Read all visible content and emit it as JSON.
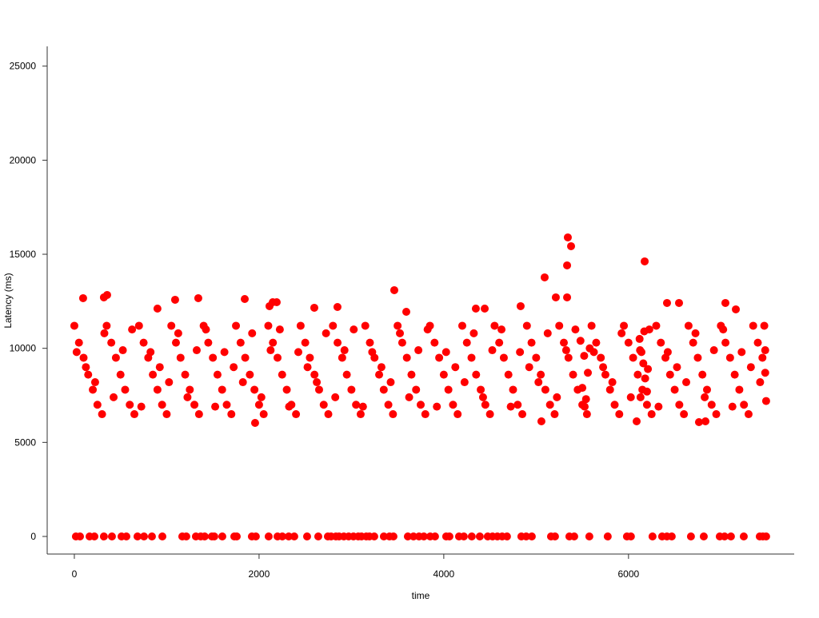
{
  "chart_data": {
    "type": "scatter",
    "title": "",
    "xlabel": "time",
    "ylabel": "Latency (ms)",
    "xlim": [
      -294,
      7794
    ],
    "ylim": [
      -935,
      26050
    ],
    "xticks": [
      0,
      2000,
      4000,
      6000
    ],
    "yticks": [
      0,
      5000,
      10000,
      15000,
      20000,
      25000
    ],
    "grid": false,
    "legend": "none",
    "point_color": "#ff0000",
    "axis_color": "#333333",
    "points": [
      [
        5343,
        15895
      ],
      [
        5378,
        15428
      ],
      [
        5335,
        14408
      ],
      [
        6175,
        14620
      ],
      [
        5092,
        13770
      ],
      [
        5213,
        12708
      ],
      [
        5335,
        12708
      ],
      [
        3464,
        13090
      ],
      [
        95,
        12665
      ],
      [
        320,
        12708
      ],
      [
        355,
        12835
      ],
      [
        1091,
        12580
      ],
      [
        1342,
        12665
      ],
      [
        1845,
        12622
      ],
      [
        900,
        12112
      ],
      [
        2113,
        12240
      ],
      [
        2148,
        12452
      ],
      [
        2191,
        12452
      ],
      [
        2598,
        12155
      ],
      [
        2849,
        12197
      ],
      [
        3594,
        11942
      ],
      [
        4832,
        12240
      ],
      [
        4347,
        12112
      ],
      [
        4443,
        12112
      ],
      [
        6417,
        12410
      ],
      [
        6547,
        12410
      ],
      [
        7049,
        12410
      ],
      [
        7162,
        12070
      ],
      [
        1957,
        6035
      ],
      [
        5057,
        6120
      ],
      [
        6088,
        6120
      ],
      [
        6763,
        6077
      ],
      [
        6833,
        6120
      ],
      [
        0,
        11200
      ],
      [
        50,
        10300
      ],
      [
        100,
        9500
      ],
      [
        150,
        8600
      ],
      [
        200,
        7800
      ],
      [
        250,
        7000
      ],
      [
        300,
        6500
      ],
      [
        350,
        11200
      ],
      [
        400,
        10300
      ],
      [
        450,
        9500
      ],
      [
        500,
        8600
      ],
      [
        550,
        7800
      ],
      [
        600,
        7000
      ],
      [
        650,
        6500
      ],
      [
        700,
        11200
      ],
      [
        750,
        10300
      ],
      [
        800,
        9500
      ],
      [
        850,
        8600
      ],
      [
        900,
        7800
      ],
      [
        950,
        7000
      ],
      [
        1000,
        6500
      ],
      [
        1050,
        11200
      ],
      [
        1100,
        10300
      ],
      [
        1150,
        9500
      ],
      [
        1200,
        8600
      ],
      [
        1250,
        7800
      ],
      [
        1300,
        7000
      ],
      [
        1350,
        6500
      ],
      [
        1400,
        11200
      ],
      [
        1450,
        10300
      ],
      [
        1500,
        9500
      ],
      [
        1550,
        8600
      ],
      [
        1600,
        7800
      ],
      [
        1650,
        7000
      ],
      [
        1700,
        6500
      ],
      [
        1750,
        11200
      ],
      [
        1800,
        10300
      ],
      [
        1850,
        9500
      ],
      [
        1900,
        8600
      ],
      [
        1950,
        7800
      ],
      [
        2000,
        7000
      ],
      [
        2050,
        6500
      ],
      [
        2100,
        11200
      ],
      [
        2150,
        10300
      ],
      [
        2200,
        9500
      ],
      [
        2250,
        8600
      ],
      [
        2300,
        7800
      ],
      [
        2350,
        7000
      ],
      [
        2400,
        6500
      ],
      [
        2450,
        11200
      ],
      [
        2500,
        10300
      ],
      [
        2550,
        9500
      ],
      [
        2600,
        8600
      ],
      [
        2650,
        7800
      ],
      [
        2700,
        7000
      ],
      [
        2750,
        6500
      ],
      [
        2800,
        11200
      ],
      [
        2850,
        10300
      ],
      [
        2900,
        9500
      ],
      [
        2950,
        8600
      ],
      [
        3000,
        7800
      ],
      [
        3050,
        7000
      ],
      [
        3100,
        6500
      ],
      [
        3150,
        11200
      ],
      [
        3200,
        10300
      ],
      [
        3250,
        9500
      ],
      [
        3300,
        8600
      ],
      [
        3350,
        7800
      ],
      [
        3400,
        7000
      ],
      [
        3450,
        6500
      ],
      [
        3500,
        11200
      ],
      [
        3550,
        10300
      ],
      [
        3600,
        9500
      ],
      [
        3650,
        8600
      ],
      [
        3700,
        7800
      ],
      [
        3750,
        7000
      ],
      [
        3800,
        6500
      ],
      [
        3850,
        11200
      ],
      [
        3900,
        10300
      ],
      [
        3950,
        9500
      ],
      [
        4000,
        8600
      ],
      [
        4050,
        7800
      ],
      [
        4100,
        7000
      ],
      [
        4150,
        6500
      ],
      [
        4200,
        11200
      ],
      [
        4250,
        10300
      ],
      [
        4300,
        9500
      ],
      [
        4350,
        8600
      ],
      [
        4400,
        7800
      ],
      [
        4450,
        7000
      ],
      [
        4500,
        6500
      ],
      [
        4550,
        11200
      ],
      [
        4600,
        10300
      ],
      [
        4650,
        9500
      ],
      [
        4700,
        8600
      ],
      [
        4750,
        7800
      ],
      [
        4800,
        7000
      ],
      [
        4850,
        6500
      ],
      [
        4900,
        11200
      ],
      [
        4950,
        10300
      ],
      [
        5000,
        9500
      ],
      [
        5050,
        8600
      ],
      [
        5100,
        7800
      ],
      [
        5150,
        7000
      ],
      [
        5200,
        6500
      ],
      [
        5250,
        11200
      ],
      [
        5300,
        10300
      ],
      [
        5350,
        9500
      ],
      [
        5400,
        8600
      ],
      [
        5450,
        7800
      ],
      [
        5500,
        7000
      ],
      [
        5550,
        6500
      ],
      [
        5600,
        11200
      ],
      [
        5650,
        10300
      ],
      [
        5700,
        9500
      ],
      [
        5750,
        8600
      ],
      [
        5800,
        7800
      ],
      [
        5850,
        7000
      ],
      [
        5900,
        6500
      ],
      [
        5950,
        11200
      ],
      [
        6000,
        10300
      ],
      [
        6050,
        9500
      ],
      [
        6100,
        8600
      ],
      [
        6150,
        7800
      ],
      [
        6200,
        7000
      ],
      [
        6250,
        6500
      ],
      [
        6300,
        11200
      ],
      [
        6350,
        10300
      ],
      [
        6400,
        9500
      ],
      [
        6450,
        8600
      ],
      [
        6500,
        7800
      ],
      [
        6550,
        7000
      ],
      [
        6600,
        6500
      ],
      [
        6650,
        11200
      ],
      [
        6700,
        10300
      ],
      [
        6750,
        9500
      ],
      [
        6800,
        8600
      ],
      [
        6850,
        7800
      ],
      [
        6900,
        7000
      ],
      [
        6950,
        6500
      ],
      [
        7000,
        11200
      ],
      [
        7050,
        10300
      ],
      [
        7100,
        9500
      ],
      [
        7150,
        8600
      ],
      [
        7200,
        7800
      ],
      [
        7250,
        7000
      ],
      [
        7300,
        6500
      ],
      [
        7350,
        11200
      ],
      [
        7400,
        10300
      ],
      [
        7450,
        9500
      ],
      [
        25,
        9800
      ],
      [
        125,
        9000
      ],
      [
        225,
        8200
      ],
      [
        325,
        10800
      ],
      [
        425,
        7400
      ],
      [
        525,
        9900
      ],
      [
        625,
        11000
      ],
      [
        725,
        6900
      ],
      [
        825,
        9800
      ],
      [
        925,
        9000
      ],
      [
        1025,
        8200
      ],
      [
        1125,
        10800
      ],
      [
        1225,
        7400
      ],
      [
        1325,
        9900
      ],
      [
        1425,
        11000
      ],
      [
        1525,
        6900
      ],
      [
        1625,
        9800
      ],
      [
        1725,
        9000
      ],
      [
        1825,
        8200
      ],
      [
        1925,
        10800
      ],
      [
        2025,
        7400
      ],
      [
        2125,
        9900
      ],
      [
        2225,
        11000
      ],
      [
        2325,
        6900
      ],
      [
        2425,
        9800
      ],
      [
        2525,
        9000
      ],
      [
        2625,
        8200
      ],
      [
        2725,
        10800
      ],
      [
        2825,
        7400
      ],
      [
        2925,
        9900
      ],
      [
        3025,
        11000
      ],
      [
        3125,
        6900
      ],
      [
        3225,
        9800
      ],
      [
        3325,
        9000
      ],
      [
        3425,
        8200
      ],
      [
        3525,
        10800
      ],
      [
        3625,
        7400
      ],
      [
        3725,
        9900
      ],
      [
        3825,
        11000
      ],
      [
        3925,
        6900
      ],
      [
        4025,
        9800
      ],
      [
        4125,
        9000
      ],
      [
        4225,
        8200
      ],
      [
        4325,
        10800
      ],
      [
        4425,
        7400
      ],
      [
        4525,
        9900
      ],
      [
        4625,
        11000
      ],
      [
        4725,
        6900
      ],
      [
        4825,
        9800
      ],
      [
        4925,
        9000
      ],
      [
        5025,
        8200
      ],
      [
        5125,
        10800
      ],
      [
        5225,
        7400
      ],
      [
        5325,
        9900
      ],
      [
        5425,
        11000
      ],
      [
        5525,
        6900
      ],
      [
        5625,
        9800
      ],
      [
        5725,
        9000
      ],
      [
        5825,
        8200
      ],
      [
        5925,
        10800
      ],
      [
        6025,
        7400
      ],
      [
        6125,
        9900
      ],
      [
        6225,
        11000
      ],
      [
        6325,
        6900
      ],
      [
        6425,
        9800
      ],
      [
        6525,
        9000
      ],
      [
        6625,
        8200
      ],
      [
        6725,
        10800
      ],
      [
        6825,
        7400
      ],
      [
        6925,
        9900
      ],
      [
        7025,
        11000
      ],
      [
        7125,
        6900
      ],
      [
        7225,
        9800
      ],
      [
        7325,
        9000
      ],
      [
        7425,
        8200
      ],
      [
        6120,
        10500
      ],
      [
        6140,
        9800
      ],
      [
        6160,
        9200
      ],
      [
        6180,
        8400
      ],
      [
        6200,
        7700
      ],
      [
        6130,
        7400
      ],
      [
        6170,
        10900
      ],
      [
        6210,
        8900
      ],
      [
        5480,
        10400
      ],
      [
        5520,
        9600
      ],
      [
        5560,
        8700
      ],
      [
        5500,
        7900
      ],
      [
        5540,
        7300
      ],
      [
        5580,
        10000
      ],
      [
        7480,
        9900
      ],
      [
        7480,
        8700
      ],
      [
        7490,
        7200
      ],
      [
        7470,
        11200
      ],
      [
        17,
        0
      ],
      [
        61,
        0
      ],
      [
        165,
        0
      ],
      [
        217,
        0
      ],
      [
        320,
        0
      ],
      [
        407,
        0
      ],
      [
        511,
        0
      ],
      [
        563,
        0
      ],
      [
        684,
        0
      ],
      [
        754,
        0
      ],
      [
        840,
        0
      ],
      [
        953,
        0
      ],
      [
        1169,
        0
      ],
      [
        1212,
        0
      ],
      [
        1316,
        0
      ],
      [
        1368,
        0
      ],
      [
        1411,
        0
      ],
      [
        1489,
        0
      ],
      [
        1515,
        0
      ],
      [
        1602,
        0
      ],
      [
        1732,
        0
      ],
      [
        1758,
        0
      ],
      [
        1922,
        0
      ],
      [
        1965,
        0
      ],
      [
        2104,
        0
      ],
      [
        2200,
        0
      ],
      [
        2252,
        0
      ],
      [
        2321,
        0
      ],
      [
        2381,
        0
      ],
      [
        2520,
        0
      ],
      [
        2641,
        0
      ],
      [
        2745,
        0
      ],
      [
        2780,
        0
      ],
      [
        2832,
        0
      ],
      [
        2866,
        0
      ],
      [
        2918,
        0
      ],
      [
        2970,
        0
      ],
      [
        3022,
        0
      ],
      [
        3074,
        0
      ],
      [
        3109,
        0
      ],
      [
        3161,
        0
      ],
      [
        3195,
        0
      ],
      [
        3247,
        0
      ],
      [
        3351,
        0
      ],
      [
        3412,
        0
      ],
      [
        3455,
        0
      ],
      [
        3611,
        0
      ],
      [
        3672,
        0
      ],
      [
        3732,
        0
      ],
      [
        3784,
        0
      ],
      [
        3853,
        0
      ],
      [
        3905,
        0
      ],
      [
        4026,
        0
      ],
      [
        4061,
        0
      ],
      [
        4165,
        0
      ],
      [
        4217,
        0
      ],
      [
        4303,
        0
      ],
      [
        4390,
        0
      ],
      [
        4476,
        0
      ],
      [
        4528,
        0
      ],
      [
        4580,
        0
      ],
      [
        4632,
        0
      ],
      [
        4684,
        0
      ],
      [
        4840,
        0
      ],
      [
        4892,
        0
      ],
      [
        4953,
        0
      ],
      [
        5161,
        0
      ],
      [
        5204,
        0
      ],
      [
        5360,
        0
      ],
      [
        5412,
        0
      ],
      [
        5576,
        0
      ],
      [
        5775,
        0
      ],
      [
        5983,
        0
      ],
      [
        6026,
        0
      ],
      [
        6260,
        0
      ],
      [
        6364,
        0
      ],
      [
        6416,
        0
      ],
      [
        6468,
        0
      ],
      [
        6676,
        0
      ],
      [
        6815,
        0
      ],
      [
        6988,
        0
      ],
      [
        7040,
        0
      ],
      [
        7109,
        0
      ],
      [
        7248,
        0
      ],
      [
        7421,
        0
      ],
      [
        7455,
        0
      ],
      [
        7490,
        0
      ]
    ]
  }
}
